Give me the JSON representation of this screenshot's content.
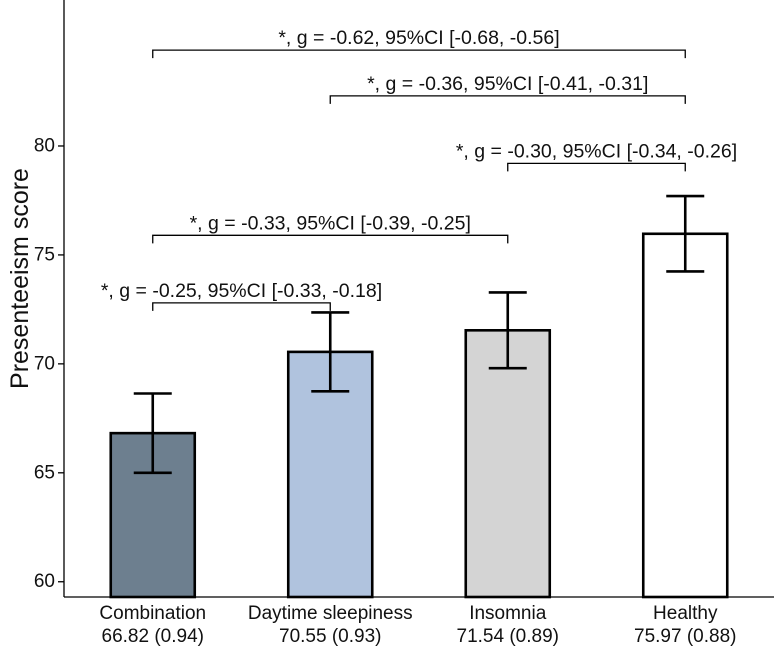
{
  "chart_data": {
    "type": "bar",
    "title": "",
    "xlabel": "",
    "ylabel": "Presenteeism score",
    "ylim": [
      59.3,
      86.7
    ],
    "yticks": [
      60,
      65,
      70,
      75,
      80
    ],
    "grid": false,
    "categories": [
      "Combination",
      "Daytime sleepiness",
      "Insomnia",
      "Healthy"
    ],
    "category_stats": [
      "66.82 (0.94)",
      "70.55 (0.93)",
      "71.54 (0.89)",
      "75.97 (0.88)"
    ],
    "values": [
      66.82,
      70.55,
      71.54,
      75.97
    ],
    "error_low": [
      65.0,
      68.74,
      69.8,
      74.24
    ],
    "error_high": [
      68.64,
      72.36,
      73.28,
      77.7
    ],
    "colors": {
      "bars": [
        "#6d7f8f",
        "#b0c3de",
        "#d4d4d4",
        "#ffffff"
      ],
      "outline": "#000000",
      "text": "#111111"
    },
    "comparisons": [
      {
        "from": 0,
        "to": 3,
        "label": "*, g = -0.62, 95%CI [-0.68, -0.56]",
        "level": 84.4
      },
      {
        "from": 1,
        "to": 3,
        "label": "*, g = -0.36, 95%CI [-0.41, -0.31]",
        "level": 82.3
      },
      {
        "from": 2,
        "to": 3,
        "label": "*, g = -0.30, 95%CI [-0.34, -0.26]",
        "level": 79.2
      },
      {
        "from": 0,
        "to": 2,
        "label": "*, g = -0.33, 95%CI [-0.39, -0.25]",
        "level": 75.9
      },
      {
        "from": 0,
        "to": 1,
        "label": "*, g = -0.25, 95%CI [-0.33, -0.18]",
        "level": 72.8
      }
    ]
  }
}
